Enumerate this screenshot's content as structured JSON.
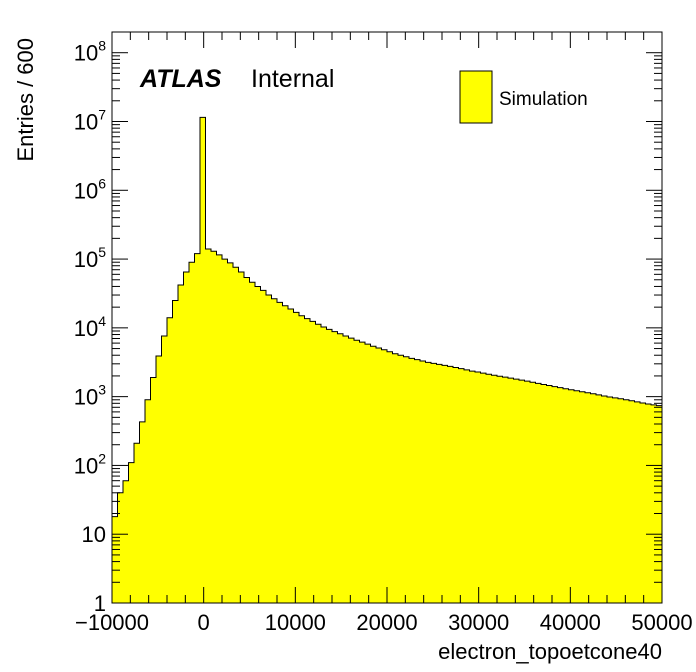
{
  "chart_data": {
    "type": "histogram",
    "xlabel": "electron_topoetcone40",
    "ylabel": "Entries / 600",
    "xlim": [
      -10000,
      50000
    ],
    "ylim": [
      1,
      200000000
    ],
    "yscale": "log",
    "bin_width": 600,
    "bin_start": -10000,
    "x_ticks": [
      -10000,
      0,
      10000,
      20000,
      30000,
      40000,
      50000
    ],
    "x_tick_labels": [
      "−10000",
      "0",
      "10000",
      "20000",
      "30000",
      "40000",
      "50000"
    ],
    "y_tick_labels": [
      {
        "value": 1,
        "base": "1",
        "exp": ""
      },
      {
        "value": 10,
        "base": "10",
        "exp": ""
      },
      {
        "value": 100,
        "base": "10",
        "exp": "2"
      },
      {
        "value": 1000,
        "base": "10",
        "exp": "3"
      },
      {
        "value": 10000,
        "base": "10",
        "exp": "4"
      },
      {
        "value": 100000,
        "base": "10",
        "exp": "5"
      },
      {
        "value": 1000000,
        "base": "10",
        "exp": "6"
      },
      {
        "value": 10000000,
        "base": "10",
        "exp": "7"
      },
      {
        "value": 100000000,
        "base": "10",
        "exp": "8"
      }
    ],
    "grid": false,
    "legend": {
      "position": "top-right",
      "entries": [
        {
          "name": "Simulation",
          "color": "#ffff00"
        }
      ]
    },
    "fill_color": "#ffff00",
    "line_color": "#000000",
    "values": [
      18,
      40,
      60,
      110,
      210,
      430,
      900,
      1900,
      3900,
      7600,
      14000,
      25000,
      42000,
      65000,
      90000,
      120000,
      11500000,
      140000,
      130000,
      115000,
      100000,
      88000,
      76000,
      65000,
      54000,
      46000,
      40000,
      35000,
      30000,
      26500,
      23500,
      21000,
      18800,
      16800,
      15000,
      13600,
      12400,
      11300,
      10300,
      9500,
      8800,
      8200,
      7600,
      7100,
      6600,
      6200,
      5800,
      5400,
      5100,
      4800,
      4500,
      4200,
      4000,
      3800,
      3600,
      3450,
      3300,
      3150,
      3050,
      2950,
      2850,
      2750,
      2650,
      2550,
      2450,
      2350,
      2280,
      2200,
      2120,
      2050,
      1980,
      1920,
      1860,
      1800,
      1740,
      1680,
      1620,
      1560,
      1500,
      1450,
      1400,
      1350,
      1300,
      1260,
      1220,
      1180,
      1140,
      1100,
      1060,
      1020,
      990,
      960,
      930,
      900,
      870,
      840,
      810,
      780,
      760,
      740
    ]
  },
  "annotation": {
    "atlas": "ATLAS",
    "internal": "Internal"
  }
}
